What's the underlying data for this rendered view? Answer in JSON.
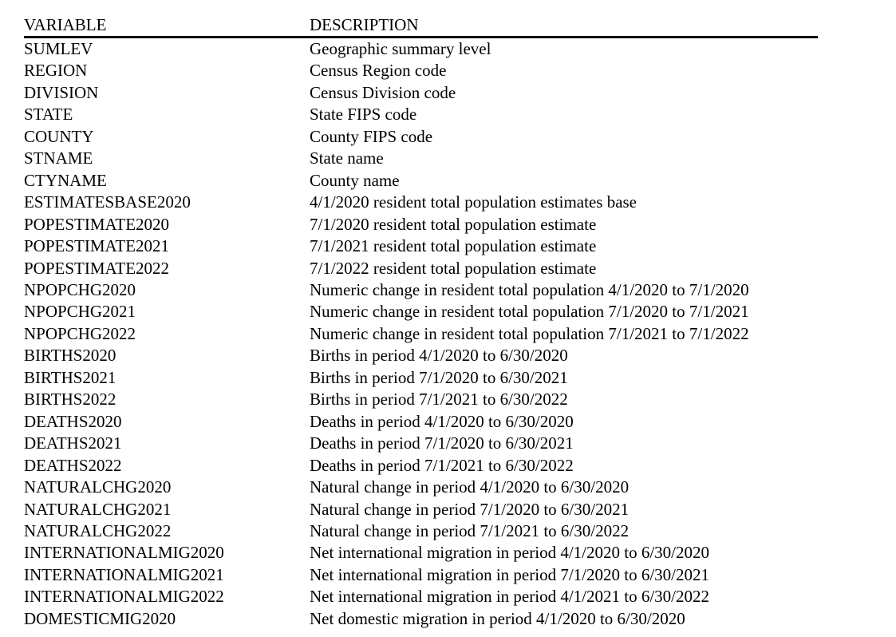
{
  "table": {
    "headers": {
      "variable": "VARIABLE",
      "description": "DESCRIPTION"
    },
    "rule_color": "#000000",
    "text_color": "#000000",
    "background_color": "#ffffff",
    "rows": [
      {
        "variable": "SUMLEV",
        "description": "Geographic summary level"
      },
      {
        "variable": "REGION",
        "description": "Census Region code"
      },
      {
        "variable": "DIVISION",
        "description": "Census Division code"
      },
      {
        "variable": "STATE",
        "description": "State FIPS code"
      },
      {
        "variable": "COUNTY",
        "description": "County FIPS code"
      },
      {
        "variable": "STNAME",
        "description": "State name"
      },
      {
        "variable": "CTYNAME",
        "description": "County name"
      },
      {
        "variable": "ESTIMATESBASE2020",
        "description": "4/1/2020 resident total population estimates base"
      },
      {
        "variable": "POPESTIMATE2020",
        "description": "7/1/2020 resident total population estimate"
      },
      {
        "variable": "POPESTIMATE2021",
        "description": "7/1/2021 resident total population estimate"
      },
      {
        "variable": "POPESTIMATE2022",
        "description": "7/1/2022 resident total population estimate"
      },
      {
        "variable": "NPOPCHG2020",
        "description": "Numeric change in resident total population 4/1/2020 to 7/1/2020"
      },
      {
        "variable": "NPOPCHG2021",
        "description": "Numeric change in resident total population 7/1/2020 to 7/1/2021"
      },
      {
        "variable": "NPOPCHG2022",
        "description": "Numeric change in resident total population 7/1/2021 to 7/1/2022"
      },
      {
        "variable": "BIRTHS2020",
        "description": "Births in period 4/1/2020 to 6/30/2020"
      },
      {
        "variable": "BIRTHS2021",
        "description": "Births in period 7/1/2020 to 6/30/2021"
      },
      {
        "variable": "BIRTHS2022",
        "description": "Births in period 7/1/2021 to 6/30/2022"
      },
      {
        "variable": "DEATHS2020",
        "description": "Deaths in period 4/1/2020 to 6/30/2020"
      },
      {
        "variable": "DEATHS2021",
        "description": "Deaths in period 7/1/2020 to 6/30/2021"
      },
      {
        "variable": "DEATHS2022",
        "description": "Deaths in period 7/1/2021 to 6/30/2022"
      },
      {
        "variable": "NATURALCHG2020",
        "description": "Natural change in period 4/1/2020 to 6/30/2020"
      },
      {
        "variable": "NATURALCHG2021",
        "description": "Natural change in period 7/1/2020 to 6/30/2021"
      },
      {
        "variable": "NATURALCHG2022",
        "description": "Natural change in period 7/1/2021 to 6/30/2022"
      },
      {
        "variable": "INTERNATIONALMIG2020",
        "description": "Net international migration in period 4/1/2020 to 6/30/2020"
      },
      {
        "variable": "INTERNATIONALMIG2021",
        "description": "Net international migration in period 7/1/2020 to 6/30/2021"
      },
      {
        "variable": "INTERNATIONALMIG2022",
        "description": "Net international migration in period 4/1/2021 to 6/30/2022"
      },
      {
        "variable": "DOMESTICMIG2020",
        "description": "Net domestic migration in period 4/1/2020 to 6/30/2020"
      }
    ]
  }
}
